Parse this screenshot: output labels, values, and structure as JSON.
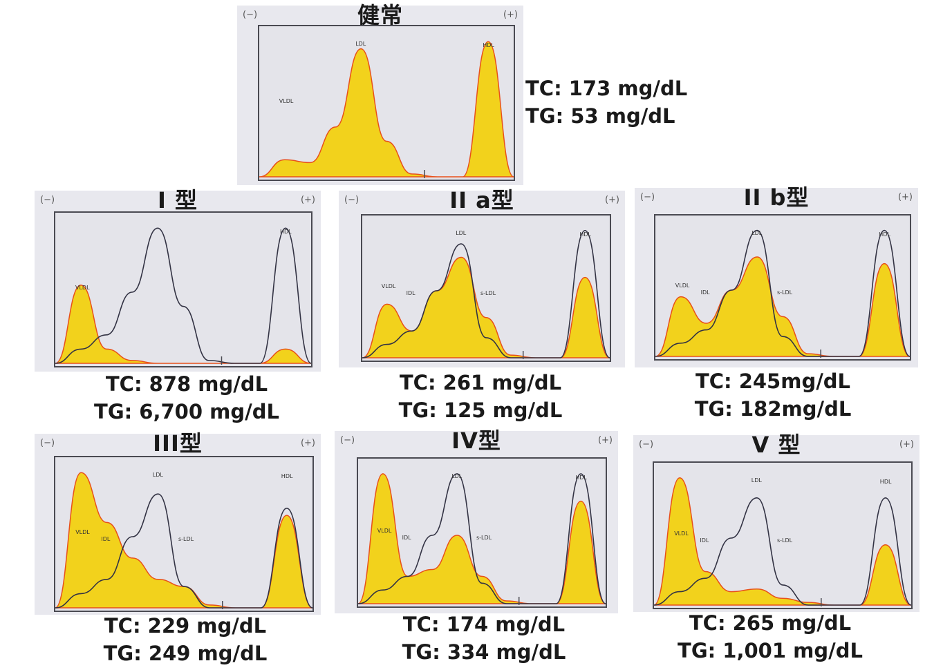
{
  "charts": [
    {
      "id": "normal",
      "title": "健常",
      "minus": "(−)",
      "plus": "(+)",
      "tc": "TC: 173 mg/dL",
      "tg": "TG: 53 mg/dL",
      "peak_labels": [
        "VLDL",
        "LDL",
        "HDL"
      ]
    },
    {
      "id": "type1",
      "title": "I 型",
      "minus": "(−)",
      "plus": "(+)",
      "tc": "TC: 878 mg/dL",
      "tg": "TG: 6,700 mg/dL",
      "peak_labels": [
        "VLDL",
        "HDL"
      ]
    },
    {
      "id": "type2a",
      "title": "II a型",
      "minus": "(−)",
      "plus": "(+)",
      "tc": "TC: 261 mg/dL",
      "tg": "TG: 125 mg/dL",
      "peak_labels": [
        "VLDL",
        "IDL",
        "LDL",
        "s-LDL",
        "HDL"
      ]
    },
    {
      "id": "type2b",
      "title": "II b型",
      "minus": "(−)",
      "plus": "(+)",
      "tc": "TC: 245mg/dL",
      "tg": "TG: 182mg/dL",
      "peak_labels": [
        "VLDL",
        "IDL",
        "LDL",
        "s-LDL",
        "HDL"
      ]
    },
    {
      "id": "type3",
      "title": "III型",
      "minus": "(−)",
      "plus": "(+)",
      "tc": "TC: 229 mg/dL",
      "tg": "TG: 249 mg/dL",
      "peak_labels": [
        "VLDL",
        "IDL",
        "LDL",
        "s-LDL",
        "HDL"
      ]
    },
    {
      "id": "type4",
      "title": "IV型",
      "minus": "(−)",
      "plus": "(+)",
      "tc": "TC: 174 mg/dL",
      "tg": "TG: 334 mg/dL",
      "peak_labels": [
        "VLDL",
        "IDL",
        "LDL",
        "s-LDL",
        "HDL"
      ]
    },
    {
      "id": "type5",
      "title": "V 型",
      "minus": "(−)",
      "plus": "(+)",
      "tc": "TC: 265 mg/dL",
      "tg": "TG: 1,001 mg/dL",
      "peak_labels": [
        "VLDL",
        "IDL",
        "LDL",
        "s-LDL",
        "HDL"
      ]
    }
  ],
  "colors": {
    "fill": "#f2d21c",
    "fill_edge": "#e8501a",
    "line": "#333344",
    "frame": "#4a4a52"
  },
  "chart_data": [
    {
      "type": "area",
      "id": "normal",
      "x": [
        0,
        0.1,
        0.2,
        0.3,
        0.4,
        0.5,
        0.6,
        0.7,
        0.8,
        0.9,
        1
      ],
      "series": [
        {
          "name": "",
          "values": [
            0,
            0.12,
            0.1,
            0.35,
            0.9,
            0.25,
            0.02,
            0,
            0,
            0.95,
            0
          ]
        }
      ]
    },
    {
      "type": "area",
      "id": "type1",
      "series": [
        {
          "name": "",
          "values": [
            0,
            0.55,
            0.1,
            0.02,
            0,
            0,
            0,
            0,
            0,
            0.1,
            0
          ]
        },
        {
          "name": "",
          "values": [
            0,
            0.1,
            0.2,
            0.5,
            0.95,
            0.4,
            0.02,
            0,
            0,
            0.95,
            0
          ]
        }
      ]
    },
    {
      "type": "area",
      "id": "type2a",
      "series": [
        {
          "name": "",
          "values": [
            0,
            0.4,
            0.2,
            0.5,
            0.75,
            0.3,
            0.02,
            0,
            0,
            0.6,
            0
          ]
        },
        {
          "name": "",
          "values": [
            0,
            0.1,
            0.2,
            0.5,
            0.85,
            0.15,
            0,
            0,
            0,
            0.95,
            0
          ]
        }
      ]
    },
    {
      "type": "area",
      "id": "type2b",
      "series": [
        {
          "name": "",
          "values": [
            0,
            0.45,
            0.25,
            0.5,
            0.75,
            0.3,
            0.02,
            0,
            0,
            0.7,
            0
          ]
        },
        {
          "name": "",
          "values": [
            0,
            0.1,
            0.2,
            0.5,
            0.95,
            0.15,
            0,
            0,
            0,
            0.95,
            0
          ]
        }
      ]
    },
    {
      "type": "area",
      "id": "type3",
      "series": [
        {
          "name": "",
          "values": [
            0,
            0.95,
            0.6,
            0.35,
            0.2,
            0.15,
            0.02,
            0,
            0,
            0.65,
            0
          ]
        },
        {
          "name": "",
          "values": [
            0,
            0.1,
            0.2,
            0.5,
            0.8,
            0.15,
            0,
            0,
            0,
            0.7,
            0
          ]
        }
      ]
    },
    {
      "type": "area",
      "id": "type4",
      "series": [
        {
          "name": "",
          "values": [
            0,
            0.95,
            0.2,
            0.25,
            0.5,
            0.2,
            0.02,
            0,
            0,
            0.75,
            0
          ]
        },
        {
          "name": "",
          "values": [
            0,
            0.1,
            0.2,
            0.5,
            0.95,
            0.15,
            0,
            0,
            0,
            0.95,
            0
          ]
        }
      ]
    },
    {
      "type": "area",
      "id": "type5",
      "series": [
        {
          "name": "",
          "values": [
            0,
            0.95,
            0.25,
            0.1,
            0.12,
            0.05,
            0.02,
            0,
            0,
            0.45,
            0
          ]
        },
        {
          "name": "",
          "values": [
            0,
            0.1,
            0.2,
            0.5,
            0.8,
            0.15,
            0,
            0,
            0,
            0.8,
            0
          ]
        }
      ]
    }
  ]
}
